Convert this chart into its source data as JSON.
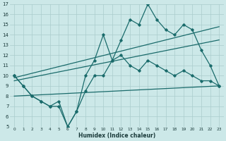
{
  "xlabel": "Humidex (Indice chaleur)",
  "bg_color": "#cce8e8",
  "grid_color": "#aacccc",
  "line_color": "#1a6b6b",
  "xlim": [
    -0.5,
    23.5
  ],
  "ylim": [
    5,
    17
  ],
  "xticks": [
    0,
    1,
    2,
    3,
    4,
    5,
    6,
    7,
    8,
    9,
    10,
    11,
    12,
    13,
    14,
    15,
    16,
    17,
    18,
    19,
    20,
    21,
    22,
    23
  ],
  "yticks": [
    5,
    6,
    7,
    8,
    9,
    10,
    11,
    12,
    13,
    14,
    15,
    16,
    17
  ],
  "upper_jagged_x": [
    0,
    1,
    2,
    3,
    4,
    5,
    6,
    7,
    8,
    9,
    10,
    11,
    12,
    13,
    14,
    15,
    16,
    17,
    18,
    19,
    20,
    21,
    22,
    23
  ],
  "upper_jagged_y": [
    10.0,
    9.0,
    8.0,
    7.5,
    7.0,
    7.5,
    5.0,
    6.5,
    10.0,
    11.5,
    14.0,
    11.5,
    13.5,
    15.5,
    15.0,
    17.0,
    15.5,
    14.5,
    14.0,
    15.0,
    14.5,
    12.5,
    11.0,
    9.0
  ],
  "lower_jagged_x": [
    0,
    1,
    2,
    3,
    4,
    5,
    6,
    7,
    8,
    9,
    10,
    11,
    12,
    13,
    14,
    15,
    16,
    17,
    18,
    19,
    20,
    21,
    22,
    23
  ],
  "lower_jagged_y": [
    10.0,
    9.0,
    8.0,
    7.5,
    7.0,
    7.0,
    5.0,
    6.5,
    8.5,
    10.0,
    10.0,
    11.5,
    12.0,
    11.0,
    10.5,
    11.5,
    11.0,
    10.5,
    10.0,
    10.5,
    10.0,
    9.5,
    9.5,
    9.0
  ],
  "diag_line_x": [
    0,
    23
  ],
  "diag_line_y": [
    9.8,
    14.8
  ],
  "diag_line2_x": [
    0,
    23
  ],
  "diag_line2_y": [
    9.5,
    13.5
  ],
  "flat_line_x": [
    0,
    23
  ],
  "flat_line_y": [
    8.0,
    9.0
  ]
}
